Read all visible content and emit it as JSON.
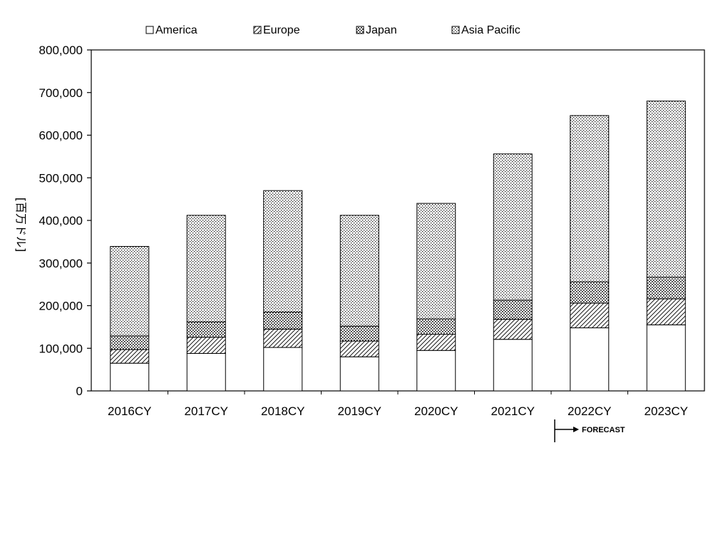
{
  "chart_data": {
    "type": "bar",
    "stacked": true,
    "categories": [
      "2016CY",
      "2017CY",
      "2018CY",
      "2019CY",
      "2020CY",
      "2021CY",
      "2022CY",
      "2023CY"
    ],
    "series": [
      {
        "name": "America",
        "values": [
          65000,
          88000,
          102000,
          80000,
          95000,
          121000,
          148000,
          155000
        ],
        "pattern": "white"
      },
      {
        "name": "Europe",
        "values": [
          32000,
          38000,
          43000,
          37000,
          38000,
          47000,
          58000,
          61000
        ],
        "pattern": "diagonal-hatch"
      },
      {
        "name": "Japan",
        "values": [
          32000,
          36000,
          40000,
          35000,
          36000,
          45000,
          50000,
          51000
        ],
        "pattern": "dense-dots"
      },
      {
        "name": "Asia Pacific",
        "values": [
          210000,
          250000,
          285000,
          260000,
          271000,
          343000,
          390000,
          413000
        ],
        "pattern": "sparse-dots"
      }
    ],
    "title": "",
    "xlabel": "",
    "ylabel": "[百万ドル]",
    "ylim": [
      0,
      800000
    ],
    "yticks": [
      "0",
      "100,000",
      "200,000",
      "300,000",
      "400,000",
      "500,000",
      "600,000",
      "700,000",
      "800,000"
    ],
    "grid": false,
    "legend_position": "top",
    "annotation": "FORECAST",
    "forecast_start_category": "2022CY"
  }
}
